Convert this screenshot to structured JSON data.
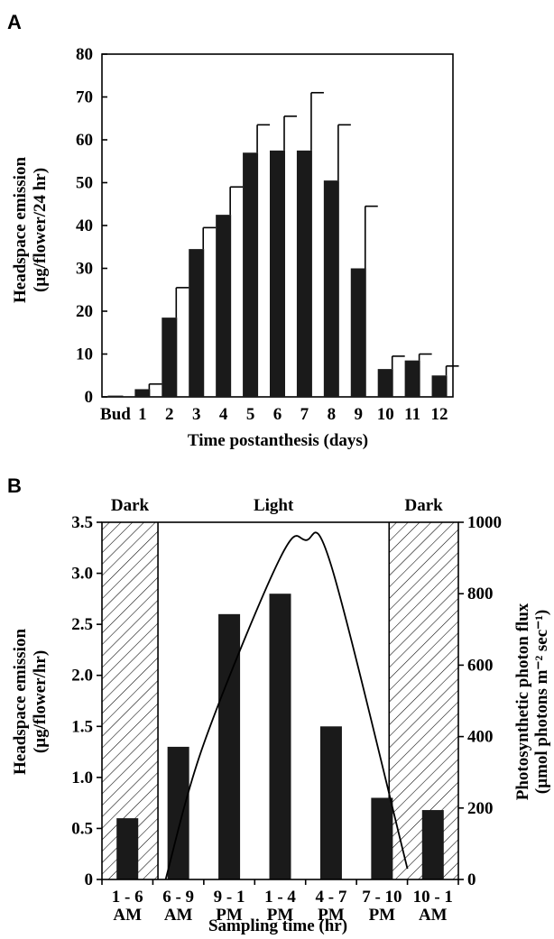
{
  "chart_data": [
    {
      "panel": "A",
      "type": "bar",
      "categories": [
        "Bud",
        "1",
        "2",
        "3",
        "4",
        "5",
        "6",
        "7",
        "8",
        "9",
        "10",
        "11",
        "12"
      ],
      "values": [
        0.3,
        1.8,
        18.5,
        34.5,
        42.5,
        57,
        57.5,
        57.5,
        50.5,
        30,
        6.5,
        8.5,
        5
      ],
      "error": [
        0,
        1.2,
        7,
        5,
        6.5,
        6.5,
        8,
        13.5,
        13,
        14.5,
        3,
        1.5,
        2.2
      ],
      "ylim": [
        0,
        80
      ],
      "yticks": [
        "0",
        "10",
        "20",
        "30",
        "40",
        "50",
        "60",
        "70",
        "80"
      ],
      "ylabel_line1": "Headspace emission",
      "ylabel_line2": "(µg/flower/24 hr)",
      "xlabel": "Time postanthesis (days)",
      "grid": false,
      "bar_color": "#1a1a1a"
    },
    {
      "panel": "B",
      "type": "bar",
      "categories": [
        [
          "1 - 6",
          "AM"
        ],
        [
          "6 - 9",
          "AM"
        ],
        [
          "9 - 1",
          "PM"
        ],
        [
          "1 - 4",
          "PM"
        ],
        [
          "4 - 7",
          "PM"
        ],
        [
          "7 - 10",
          "PM"
        ],
        [
          "10 - 1",
          "AM"
        ]
      ],
      "values": [
        0.6,
        1.3,
        2.6,
        2.8,
        1.5,
        0.8,
        0.68
      ],
      "ylim": [
        0,
        3.5
      ],
      "yticks": [
        "0",
        "0.5",
        "1.0",
        "1.5",
        "2.0",
        "2.5",
        "3.0",
        "3.5"
      ],
      "ylabel_line1": "Headspace emission",
      "ylabel_line2": "(µg/flower/hr)",
      "xlabel": "Sampling time (hr)",
      "y2lim": [
        0,
        1000
      ],
      "y2ticks": [
        "0",
        "200",
        "400",
        "600",
        "800",
        "1000"
      ],
      "y2label_line1": "Photosynthetic photon flux",
      "y2label_line2": "(µmol photons m⁻² sec⁻¹)",
      "regions": [
        "Dark",
        "Light",
        "Dark"
      ],
      "photon_flux_line": {
        "x": [
          1.25,
          2.0,
          3.5,
          4.0,
          4.5,
          6.0
        ],
        "y": [
          0,
          380,
          900,
          950,
          880,
          30
        ]
      },
      "grid": false,
      "bar_color": "#1a1a1a"
    }
  ]
}
